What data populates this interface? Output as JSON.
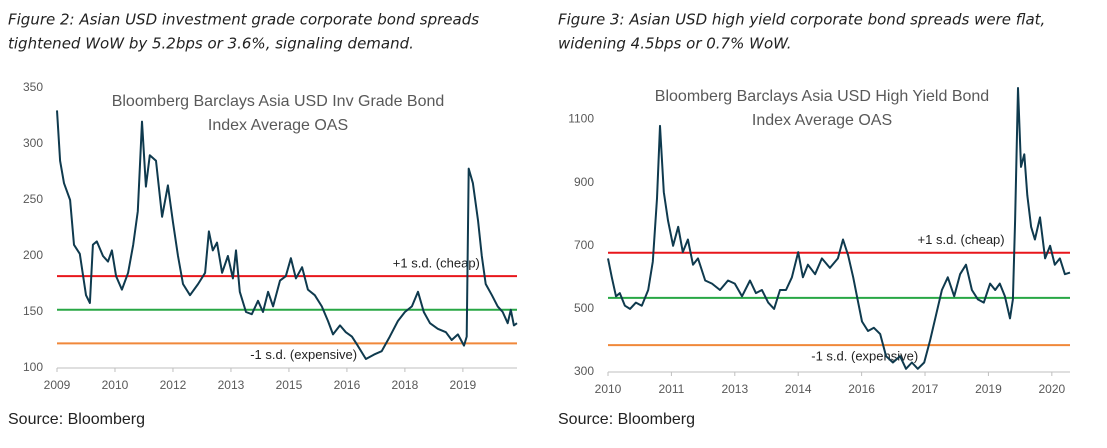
{
  "chart_data": [
    {
      "type": "line",
      "caption": [
        "Figure 2: Asian USD investment grade corporate bond spreads",
        "tightened WoW by 5.2bps or 3.6%, signaling demand."
      ],
      "title": [
        "Bloomberg Barclays Asia USD Inv Grade Bond",
        "Index Average OAS"
      ],
      "source": "Source: Bloomberg",
      "color": "#0f3a4e",
      "x": [
        2009.0,
        2009.08,
        2009.18,
        2009.34,
        2009.44,
        2009.59,
        2009.75,
        2009.85,
        2009.93,
        2010.03,
        2010.19,
        2010.32,
        2010.42,
        2010.53,
        2010.68,
        2010.84,
        2010.97,
        2011.09,
        2011.2,
        2011.3,
        2011.4,
        2011.56,
        2011.72,
        2011.87,
        2012.0,
        2012.13,
        2012.26,
        2012.44,
        2012.65,
        2012.83,
        2012.93,
        2013.03,
        2013.14,
        2013.27,
        2013.42,
        2013.55,
        2013.63,
        2013.73,
        2013.89,
        2014.04,
        2014.2,
        2014.33,
        2014.46,
        2014.59,
        2014.77,
        2014.92,
        2015.05,
        2015.18,
        2015.34,
        2015.49,
        2015.67,
        2015.85,
        2016.01,
        2016.14,
        2016.32,
        2016.47,
        2016.63,
        2016.78,
        2016.99,
        2017.2,
        2017.4,
        2017.61,
        2017.82,
        2018.0,
        2018.18,
        2018.34,
        2018.49,
        2018.65,
        2018.85,
        2019.06,
        2019.21,
        2019.37,
        2019.53,
        2019.6,
        2019.65,
        2019.76,
        2019.89,
        2019.99,
        2020.09,
        2020.25,
        2020.4,
        2020.53,
        2020.66,
        2020.74,
        2020.82,
        2020.9
      ],
      "values": [
        330,
        285,
        265,
        250,
        210,
        202,
        165,
        158,
        210,
        213,
        200,
        195,
        205,
        182,
        170,
        185,
        210,
        240,
        320,
        262,
        290,
        285,
        235,
        263,
        230,
        200,
        175,
        165,
        175,
        185,
        222,
        205,
        212,
        185,
        200,
        180,
        205,
        168,
        150,
        148,
        160,
        150,
        168,
        155,
        178,
        182,
        198,
        180,
        190,
        170,
        165,
        155,
        142,
        130,
        138,
        132,
        128,
        120,
        108,
        112,
        115,
        128,
        142,
        150,
        155,
        168,
        150,
        140,
        135,
        132,
        125,
        130,
        120,
        128,
        278,
        265,
        232,
        200,
        175,
        165,
        155,
        150,
        140,
        152,
        138,
        140
      ],
      "xlim": [
        2009,
        2020.9
      ],
      "xticks": [
        2009,
        {
          "value": 2010.5,
          "label": "2010"
        },
        2012,
        {
          "value": 2013.5,
          "label": "2013"
        },
        2015,
        {
          "value": 2016.5,
          "label": "2016"
        },
        2018,
        {
          "value": 2019.5,
          "label": "2019"
        }
      ],
      "ylim": [
        100,
        350
      ],
      "yticks": [
        100,
        150,
        200,
        250,
        300,
        350
      ],
      "reference_lines": [
        {
          "value": 182,
          "color": "#e8161b",
          "label": "+1 s.d. (cheap)"
        },
        {
          "value": 152,
          "color": "#28a745"
        },
        {
          "value": 122,
          "color": "#f0883a",
          "label": "-1 s.d. (expensive)"
        }
      ]
    },
    {
      "type": "line",
      "caption": [
        "Figure 3: Asian USD high yield corporate bond spreads were flat,",
        "widening 4.5bps or 0.7% WoW."
      ],
      "title": [
        "Bloomberg  Barclays Asia USD High Yield Bond",
        "Index Average OAS"
      ],
      "source": "Source: Bloomberg",
      "color": "#0f3a4e",
      "x": [
        2010.0,
        2010.09,
        2010.19,
        2010.28,
        2010.4,
        2010.52,
        2010.66,
        2010.8,
        2010.95,
        2011.06,
        2011.16,
        2011.23,
        2011.32,
        2011.42,
        2011.54,
        2011.66,
        2011.77,
        2011.89,
        2012.01,
        2012.13,
        2012.3,
        2012.46,
        2012.65,
        2012.84,
        2013.0,
        2013.17,
        2013.36,
        2013.5,
        2013.64,
        2013.79,
        2013.93,
        2014.07,
        2014.21,
        2014.35,
        2014.5,
        2014.61,
        2014.73,
        2014.9,
        2015.06,
        2015.25,
        2015.44,
        2015.56,
        2015.68,
        2015.8,
        2015.92,
        2016.01,
        2016.15,
        2016.29,
        2016.44,
        2016.58,
        2016.74,
        2016.91,
        2017.05,
        2017.19,
        2017.33,
        2017.48,
        2017.62,
        2017.76,
        2017.9,
        2018.04,
        2018.19,
        2018.33,
        2018.47,
        2018.61,
        2018.75,
        2018.89,
        2019.04,
        2019.16,
        2019.27,
        2019.39,
        2019.51,
        2019.58,
        2019.63,
        2019.7,
        2019.77,
        2019.85,
        2019.92,
        2020.01,
        2020.1,
        2020.22,
        2020.34,
        2020.46,
        2020.57,
        2020.69,
        2020.81,
        2020.93
      ],
      "values": [
        660,
        600,
        540,
        550,
        510,
        500,
        520,
        510,
        560,
        650,
        850,
        1080,
        870,
        780,
        700,
        760,
        680,
        720,
        640,
        660,
        590,
        580,
        560,
        590,
        580,
        540,
        590,
        550,
        560,
        520,
        500,
        560,
        560,
        600,
        680,
        600,
        640,
        610,
        660,
        630,
        660,
        720,
        670,
        600,
        520,
        460,
        430,
        440,
        420,
        350,
        330,
        350,
        310,
        330,
        310,
        330,
        400,
        480,
        560,
        600,
        540,
        610,
        640,
        560,
        530,
        520,
        580,
        560,
        580,
        540,
        470,
        530,
        780,
        1200,
        950,
        990,
        860,
        760,
        720,
        790,
        660,
        700,
        640,
        660,
        610,
        615
      ],
      "xlim": [
        2010,
        2020.93
      ],
      "xticks": [
        2010,
        {
          "value": 2011.5,
          "label": "2011"
        },
        2013,
        {
          "value": 2014.5,
          "label": "2014"
        },
        2016,
        {
          "value": 2017.5,
          "label": "2017"
        },
        2019,
        {
          "value": 2020.5,
          "label": "2020"
        }
      ],
      "ylim": [
        300,
        1200
      ],
      "yticks": [
        300,
        500,
        700,
        900,
        1100
      ],
      "reference_lines": [
        {
          "value": 678,
          "color": "#e8161b",
          "label": "+1 s.d. (cheap)"
        },
        {
          "value": 535,
          "color": "#28a745"
        },
        {
          "value": 385,
          "color": "#f0883a",
          "label": "-1 s.d. (expensive)"
        }
      ]
    }
  ]
}
